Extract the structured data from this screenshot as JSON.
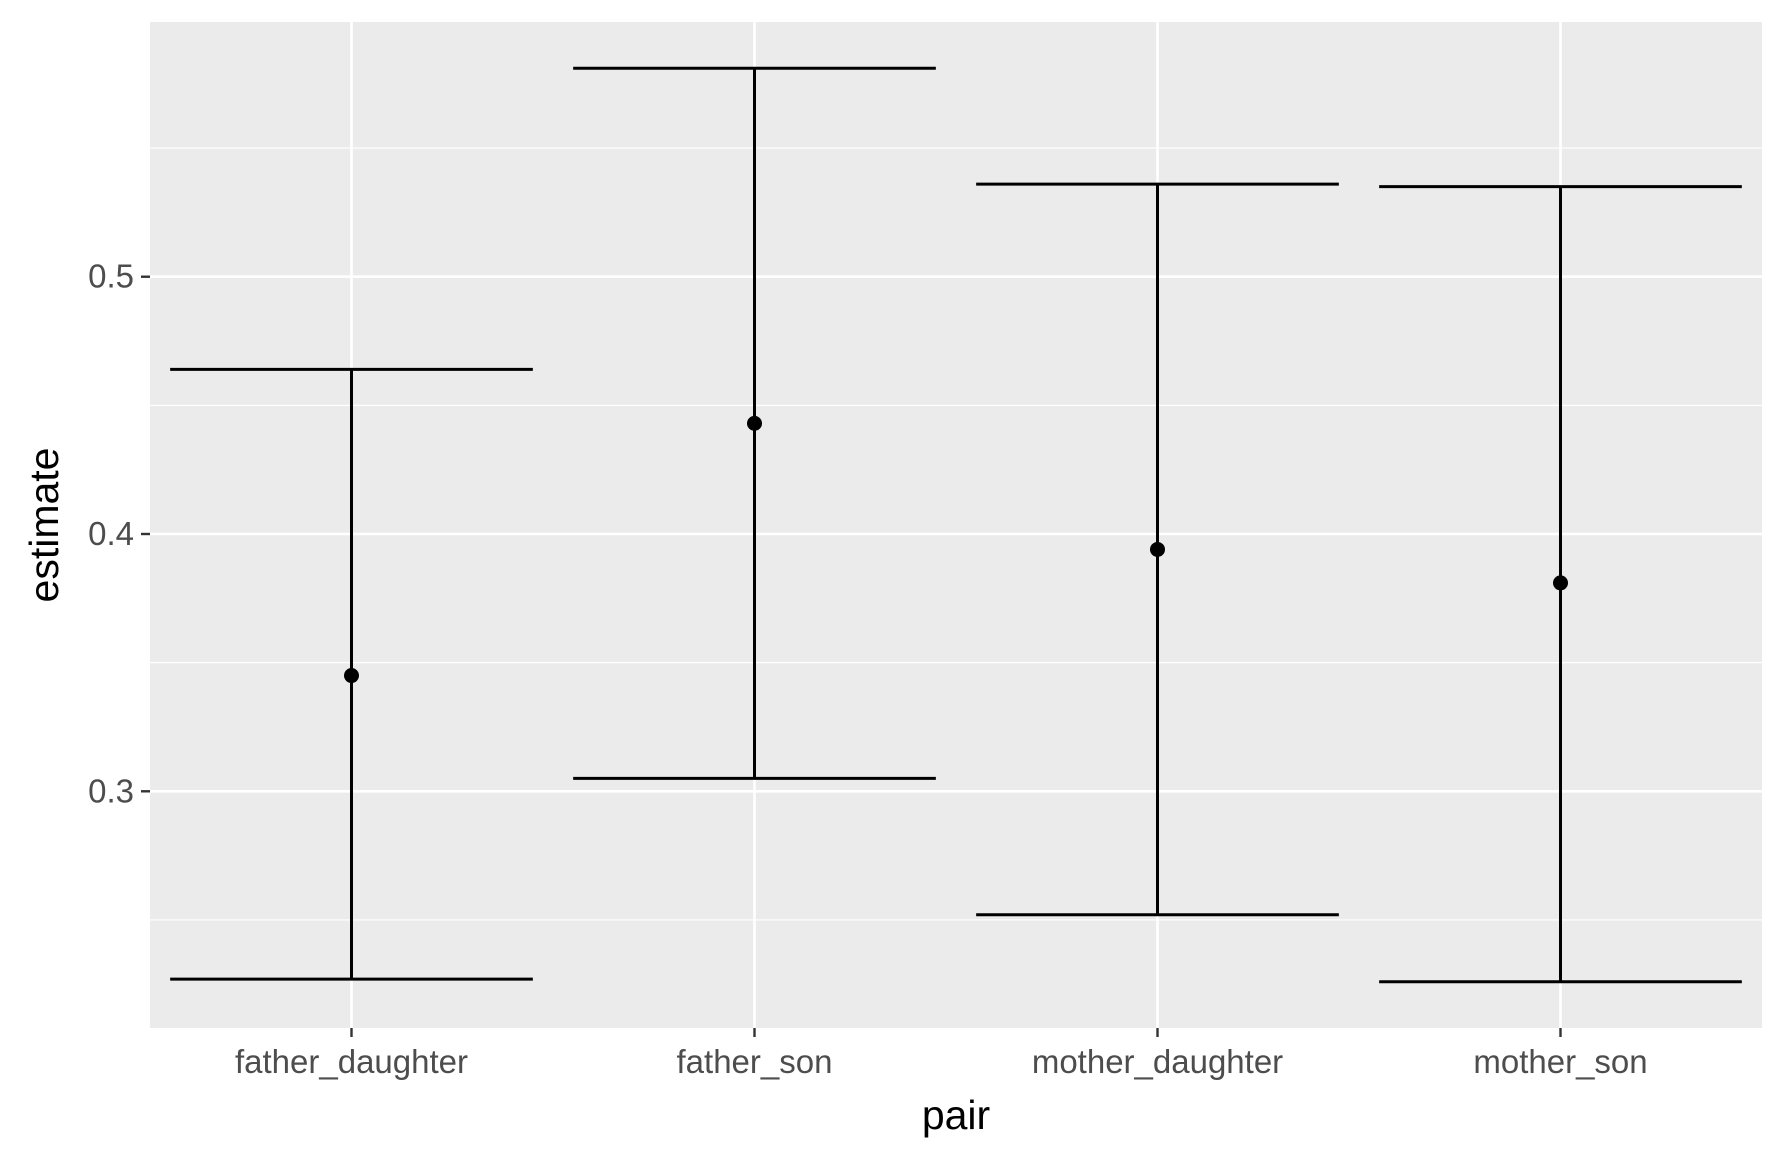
{
  "chart_data": {
    "type": "errorbar",
    "title": "",
    "xlabel": "pair",
    "ylabel": "estimate",
    "categories": [
      "father_daughter",
      "father_son",
      "mother_daughter",
      "mother_son"
    ],
    "series": [
      {
        "estimate": [
          0.345,
          0.443,
          0.394,
          0.381
        ],
        "lower": [
          0.227,
          0.305,
          0.252,
          0.226
        ],
        "upper": [
          0.464,
          0.581,
          0.536,
          0.535
        ]
      }
    ],
    "yticks": [
      0.3,
      0.4,
      0.5
    ],
    "ytick_labels": [
      "0.3",
      "0.4",
      "0.5"
    ],
    "ylim": [
      0.208,
      0.599
    ],
    "grid": true,
    "legend": "none",
    "colors": {
      "panel_background": "#ebebeb",
      "grid": "#ffffff",
      "marks": "#000000",
      "tick_text": "#4d4d4d",
      "tick_mark": "#333333"
    }
  }
}
